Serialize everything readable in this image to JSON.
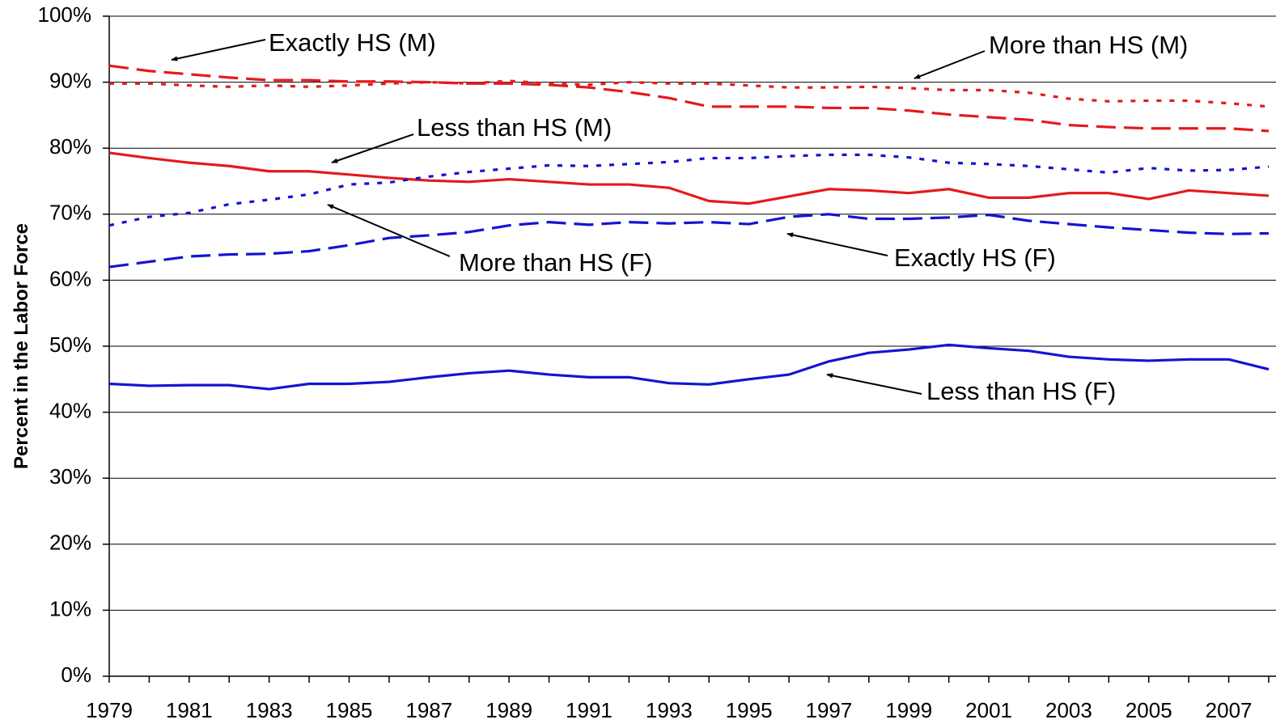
{
  "chart_data": {
    "type": "line",
    "y_label": "Percent in the Labor Force",
    "x": [
      1979,
      1980,
      1981,
      1982,
      1983,
      1984,
      1985,
      1986,
      1987,
      1988,
      1989,
      1990,
      1991,
      1992,
      1993,
      1994,
      1995,
      1996,
      1997,
      1998,
      1999,
      2000,
      2001,
      2002,
      2003,
      2004,
      2005,
      2006,
      2007,
      2008
    ],
    "xlim": [
      1979,
      2008
    ],
    "xticks": [
      1979,
      1981,
      1983,
      1985,
      1987,
      1989,
      1991,
      1993,
      1995,
      1997,
      1999,
      2001,
      2003,
      2005,
      2007
    ],
    "ylim": [
      0,
      100
    ],
    "yticks": [
      {
        "value": 0,
        "label": "0%"
      },
      {
        "value": 10,
        "label": "10%"
      },
      {
        "value": 20,
        "label": "20%"
      },
      {
        "value": 30,
        "label": "30%"
      },
      {
        "value": 40,
        "label": "40%"
      },
      {
        "value": 50,
        "label": "50%"
      },
      {
        "value": 60,
        "label": "60%"
      },
      {
        "value": 70,
        "label": "70%"
      },
      {
        "value": 80,
        "label": "80%"
      },
      {
        "value": 90,
        "label": "90%"
      },
      {
        "value": 100,
        "label": "100%"
      }
    ],
    "grid": true,
    "series": [
      {
        "name": "Exactly HS (M)",
        "color": "#e41a1c",
        "dash": "long-dash",
        "values": [
          92.5,
          91.7,
          91.2,
          90.7,
          90.3,
          90.3,
          90.1,
          90.1,
          90.0,
          89.8,
          89.8,
          89.6,
          89.2,
          88.5,
          87.6,
          86.3,
          86.3,
          86.3,
          86.1,
          86.1,
          85.7,
          85.1,
          84.7,
          84.3,
          83.5,
          83.2,
          83.0,
          83.0,
          83.0,
          82.6
        ]
      },
      {
        "name": "More than HS (M)",
        "color": "#e41a1c",
        "dash": "dotted",
        "values": [
          89.8,
          89.8,
          89.5,
          89.3,
          89.5,
          89.3,
          89.5,
          89.8,
          90.0,
          89.8,
          90.2,
          89.8,
          89.6,
          90.0,
          89.8,
          89.8,
          89.5,
          89.2,
          89.2,
          89.3,
          89.1,
          88.8,
          88.8,
          88.4,
          87.5,
          87.1,
          87.2,
          87.2,
          86.8,
          86.3
        ]
      },
      {
        "name": "Less than HS (M)",
        "color": "#e41a1c",
        "dash": "solid",
        "values": [
          79.3,
          78.5,
          77.8,
          77.3,
          76.5,
          76.5,
          76.0,
          75.5,
          75.1,
          74.9,
          75.3,
          74.9,
          74.5,
          74.5,
          74.0,
          72.0,
          71.6,
          72.7,
          73.8,
          73.6,
          73.2,
          73.8,
          72.5,
          72.5,
          73.2,
          73.2,
          72.3,
          73.6,
          73.2,
          72.8
        ]
      },
      {
        "name": "More than HS (F)",
        "color": "#1414d2",
        "dash": "dotted",
        "values": [
          68.3,
          69.6,
          70.2,
          71.5,
          72.2,
          73.0,
          74.5,
          74.8,
          75.7,
          76.4,
          76.9,
          77.4,
          77.3,
          77.6,
          77.9,
          78.5,
          78.5,
          78.8,
          79.0,
          79.0,
          78.6,
          77.8,
          77.6,
          77.3,
          76.8,
          76.3,
          77.0,
          76.6,
          76.7,
          77.2
        ]
      },
      {
        "name": "Exactly HS (F)",
        "color": "#1414d2",
        "dash": "long-dash",
        "values": [
          62.0,
          62.8,
          63.6,
          63.9,
          64.0,
          64.4,
          65.3,
          66.4,
          66.8,
          67.3,
          68.3,
          68.8,
          68.4,
          68.8,
          68.6,
          68.8,
          68.5,
          69.6,
          70.0,
          69.3,
          69.3,
          69.5,
          69.9,
          69.0,
          68.5,
          68.0,
          67.6,
          67.2,
          67.0,
          67.1
        ]
      },
      {
        "name": "Less than HS (F)",
        "color": "#1414d2",
        "dash": "solid",
        "values": [
          44.3,
          44.0,
          44.1,
          44.1,
          43.5,
          44.3,
          44.3,
          44.6,
          45.3,
          45.9,
          46.3,
          45.7,
          45.3,
          45.3,
          44.4,
          44.2,
          45.0,
          45.7,
          47.7,
          49.0,
          49.5,
          50.2,
          49.7,
          49.3,
          48.4,
          48.0,
          47.8,
          48.0,
          48.0,
          46.5
        ]
      }
    ]
  }
}
